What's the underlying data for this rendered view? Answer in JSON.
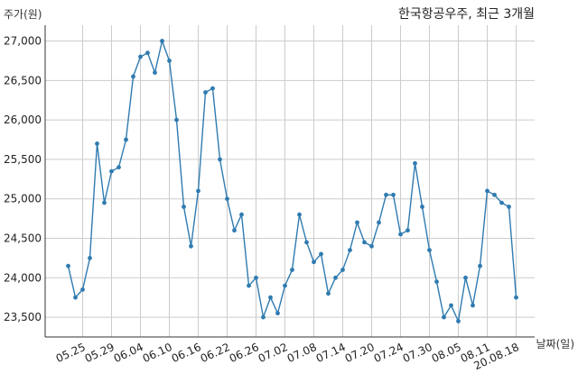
{
  "chart_data": {
    "type": "line",
    "title": "한국항공우주, 최근 3개월",
    "xlabel": "날짜(일)",
    "ylabel": "주가(원)",
    "ylim": [
      23250,
      27200
    ],
    "grid": true,
    "series_color": "#2f7bb0",
    "x_tick_labels": [
      "05.25",
      "05.29",
      "06.04",
      "06.10",
      "06.16",
      "06.22",
      "06.26",
      "07.02",
      "07.08",
      "07.14",
      "07.20",
      "07.24",
      "07.30",
      "08.05",
      "08.11",
      "20.08.18"
    ],
    "y_ticks": [
      23500,
      24000,
      24500,
      25000,
      25500,
      26000,
      26500,
      27000
    ],
    "y_tick_labels": [
      "23,500",
      "24,000",
      "24,500",
      "25,000",
      "25,500",
      "26,000",
      "26,500",
      "27,000"
    ],
    "series": [
      {
        "values": [
          24150,
          23750,
          23850,
          24250,
          25700,
          24950,
          25350,
          25400,
          25750,
          26550,
          26800,
          26850,
          26600,
          27000,
          26750,
          26000,
          24900,
          24400,
          25100,
          26350,
          26400,
          25500,
          25000,
          24600,
          24800,
          23900,
          24000,
          23500,
          23750,
          23550,
          23900,
          24100,
          24800,
          24450,
          24200,
          24300,
          23800,
          24000,
          24100,
          24350,
          24700,
          24450,
          24400,
          24700,
          25050,
          25050,
          24550,
          24600,
          25450,
          24900,
          24350,
          23950,
          23500,
          23650,
          23450,
          24000,
          23650,
          24150,
          25100,
          25050,
          24950,
          24900,
          23750
        ]
      }
    ]
  }
}
